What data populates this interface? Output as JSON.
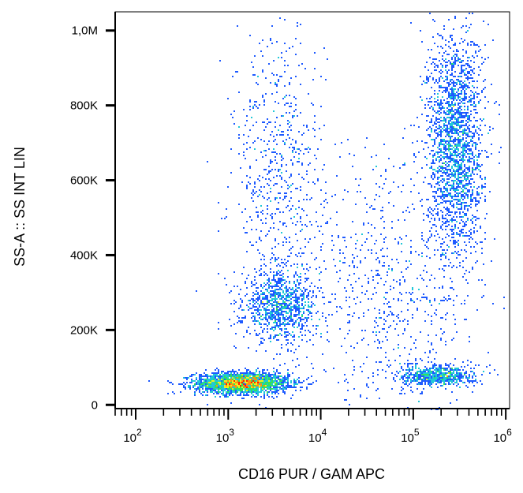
{
  "chart_data": {
    "type": "scatter",
    "title": "",
    "xlabel": "CD16 PUR / GAM APC",
    "ylabel": "SS-A :: SS INT LIN",
    "x_scale": "log",
    "xlim": [
      60,
      1100000
    ],
    "ylim": [
      -10000,
      1050000
    ],
    "x_ticks": [
      {
        "value": 100,
        "base": "10",
        "exp": "2"
      },
      {
        "value": 1000,
        "base": "10",
        "exp": "3"
      },
      {
        "value": 10000,
        "base": "10",
        "exp": "4"
      },
      {
        "value": 100000,
        "base": "10",
        "exp": "5"
      },
      {
        "value": 1000000,
        "base": "10",
        "exp": "6"
      }
    ],
    "y_ticks": [
      {
        "value": 0,
        "label": "0"
      },
      {
        "value": 200000,
        "label": "200K"
      },
      {
        "value": 400000,
        "label": "400K"
      },
      {
        "value": 600000,
        "label": "600K"
      },
      {
        "value": 800000,
        "label": "800K"
      },
      {
        "value": 1000000,
        "label": "1,0M"
      }
    ],
    "grid": false,
    "legend": "none",
    "density_colors": [
      "#0000c8",
      "#1e5aff",
      "#20c8d8",
      "#30e060",
      "#f0f020",
      "#ff9010",
      "#ff1a00"
    ],
    "populations": [
      {
        "x_center": 1400,
        "y_center": 60000,
        "x_spread_log10": 0.25,
        "y_spread": 14000,
        "count": 2600
      },
      {
        "x_center": 3600,
        "y_center": 265000,
        "x_spread_log10": 0.2,
        "y_spread": 45000,
        "count": 1000
      },
      {
        "x_center": 3500,
        "y_center": 600000,
        "x_spread_log10": 0.25,
        "y_spread": 200000,
        "count": 700
      },
      {
        "x_center": 280000,
        "y_center": 700000,
        "x_spread_log10": 0.15,
        "y_spread": 150000,
        "count": 2200
      },
      {
        "x_center": 180000,
        "y_center": 80000,
        "x_spread_log10": 0.2,
        "y_spread": 14000,
        "count": 700
      },
      {
        "x_center": 60000,
        "y_center": 300000,
        "x_spread_log10": 0.45,
        "y_spread": 190000,
        "count": 700
      }
    ]
  }
}
